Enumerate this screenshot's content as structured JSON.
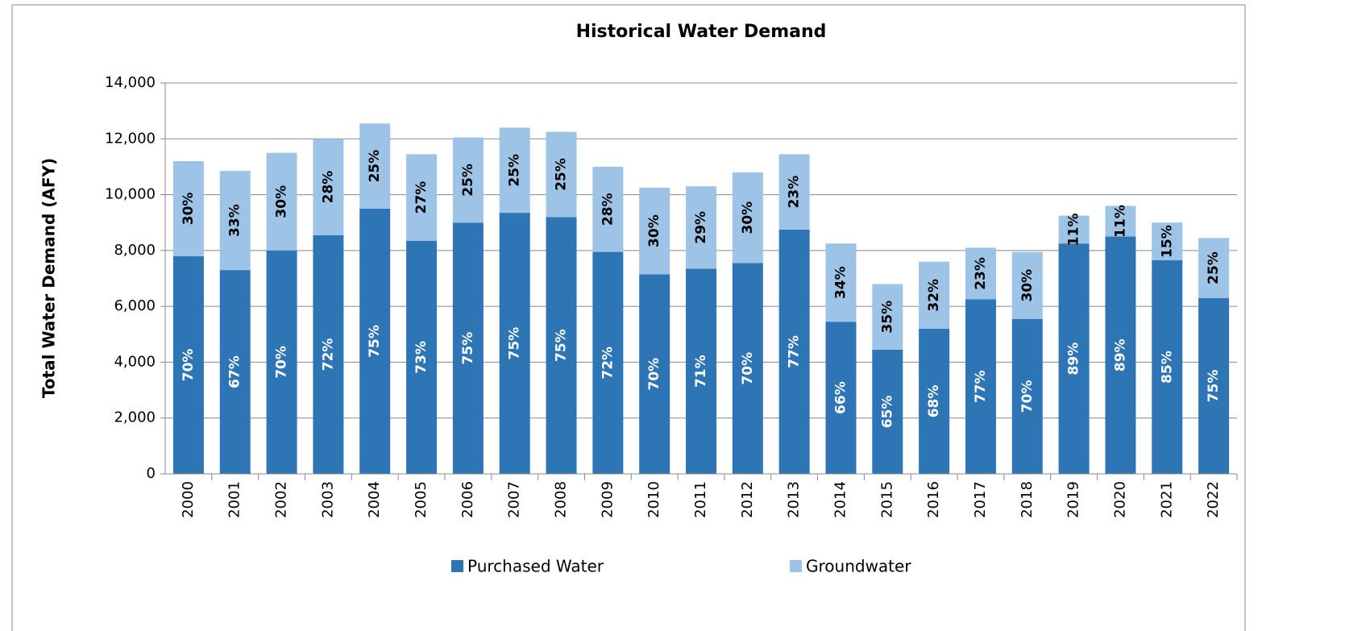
{
  "chart_data": {
    "type": "stacked_bar",
    "title": "Historical Water Demand",
    "y_label": "Total Water Demand (AFY)",
    "categories": [
      "2000",
      "2001",
      "2002",
      "2003",
      "2004",
      "2005",
      "2006",
      "2007",
      "2008",
      "2009",
      "2010",
      "2011",
      "2012",
      "2013",
      "2014",
      "2015",
      "2016",
      "2017",
      "2018",
      "2019",
      "2020",
      "2021",
      "2022"
    ],
    "series": [
      {
        "name": "Purchased Water",
        "color": "#2e75b6",
        "values": [
          7800,
          7300,
          8000,
          8550,
          9500,
          8350,
          9000,
          9350,
          9200,
          7950,
          7150,
          7350,
          7550,
          8750,
          5450,
          4450,
          5200,
          6250,
          5550,
          8250,
          8500,
          7650,
          6300
        ],
        "data_labels": [
          "70%",
          "67%",
          "70%",
          "72%",
          "75%",
          "73%",
          "75%",
          "75%",
          "75%",
          "72%",
          "70%",
          "71%",
          "70%",
          "77%",
          "66%",
          "65%",
          "68%",
          "77%",
          "70%",
          "89%",
          "89%",
          "85%",
          "75%"
        ]
      },
      {
        "name": "Groundwater",
        "color": "#9dc3e6",
        "values": [
          3400,
          3550,
          3500,
          3450,
          3050,
          3100,
          3050,
          3050,
          3050,
          3050,
          3100,
          2950,
          3250,
          2700,
          2800,
          2350,
          2400,
          1850,
          2400,
          1000,
          1100,
          1350,
          2150
        ],
        "data_labels": [
          "30%",
          "33%",
          "30%",
          "28%",
          "25%",
          "27%",
          "25%",
          "25%",
          "25%",
          "28%",
          "30%",
          "29%",
          "30%",
          "23%",
          "34%",
          "35%",
          "32%",
          "23%",
          "30%",
          "11%",
          "11%",
          "15%",
          "25%"
        ]
      }
    ],
    "ylim": [
      0,
      14000
    ],
    "yticks": [
      0,
      {
        "value": 2000,
        "label": "2,000"
      },
      {
        "value": 4000,
        "label": "4,000"
      },
      {
        "value": 6000,
        "label": "6,000"
      },
      {
        "value": 8000,
        "label": "8,000"
      },
      {
        "value": 10000,
        "label": "10,000"
      },
      {
        "value": 12000,
        "label": "12,000"
      },
      {
        "value": 14000,
        "label": "14,000"
      }
    ],
    "grid": true,
    "legend": "bottom"
  }
}
